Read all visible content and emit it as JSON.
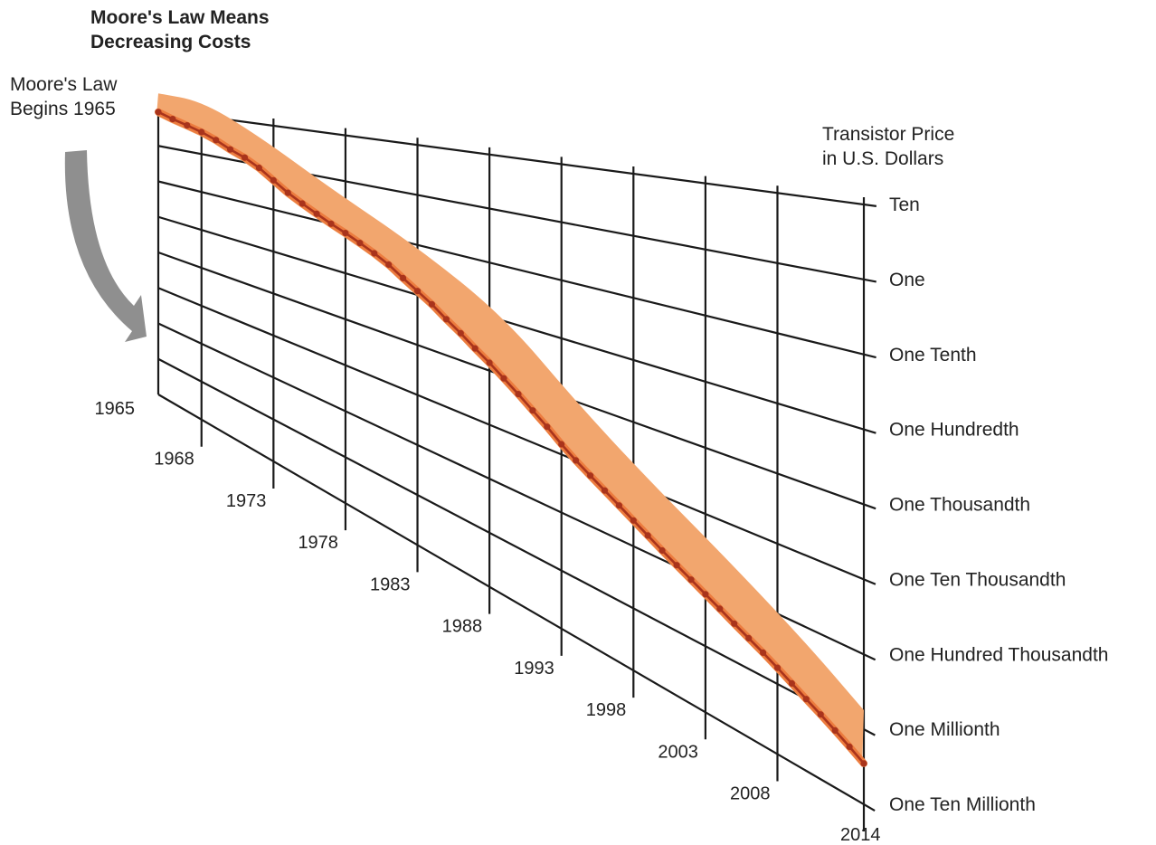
{
  "chart_data": {
    "type": "area",
    "title": [
      "Moore's Law Means",
      "Decreasing Costs"
    ],
    "annotation": [
      "Moore's Law",
      "Begins 1965"
    ],
    "ylabel": [
      "Transistor Price",
      "in U.S. Dollars"
    ],
    "y_scale": "log",
    "y_tick_labels": [
      "Ten",
      "One",
      "One Tenth",
      "One Hundredth",
      "One Thousandth",
      "One Ten Thousandth",
      "One Hundred Thousandth",
      "One Millionth",
      "One Ten Millionth"
    ],
    "y_tick_values": [
      10,
      1,
      0.1,
      0.01,
      0.001,
      0.0001,
      1e-05,
      1e-06,
      1e-07
    ],
    "x_tick_labels": [
      "1965",
      "1968",
      "1973",
      "1978",
      "1983",
      "1988",
      "1993",
      "1998",
      "2003",
      "2008",
      "2014"
    ],
    "xlim": [
      1965,
      2014
    ],
    "band_upper": [
      [
        1965,
        30
      ],
      [
        1968,
        25
      ],
      [
        1972,
        5
      ],
      [
        1977,
        0.6
      ],
      [
        1983,
        0.09
      ],
      [
        1989,
        0.012
      ],
      [
        1994,
        0.001
      ],
      [
        1999,
        0.00015
      ],
      [
        2005,
        2.5e-05
      ],
      [
        2010,
        6e-06
      ],
      [
        2014,
        1.8e-06
      ]
    ],
    "series": [
      {
        "type": "line-markers",
        "x": [
          1965,
          1966,
          1967,
          1968,
          1969,
          1970,
          1971,
          1972,
          1973,
          1974,
          1975,
          1976,
          1977,
          1978,
          1979,
          1980,
          1981,
          1982,
          1983,
          1984,
          1985,
          1986,
          1987,
          1988,
          1989,
          1990,
          1991,
          1992,
          1993,
          1994,
          1995,
          1996,
          1997,
          1998,
          1999,
          2000,
          2001,
          2002,
          2003,
          2004,
          2005,
          2006,
          2007,
          2008,
          2009,
          2010,
          2011,
          2012,
          2013,
          2014
        ],
        "values": [
          9,
          6.5,
          5,
          3.8,
          2.7,
          1.8,
          1.3,
          0.85,
          0.5,
          0.3,
          0.2,
          0.14,
          0.1,
          0.075,
          0.055,
          0.04,
          0.028,
          0.018,
          0.012,
          0.008,
          0.005,
          0.0033,
          0.0021,
          0.0014,
          0.0009,
          0.00058,
          0.00037,
          0.00024,
          0.00015,
          0.0001,
          7e-05,
          5e-05,
          3.6e-05,
          2.6e-05,
          1.9e-05,
          1.4e-05,
          1.05e-05,
          8e-06,
          6.1e-06,
          4.7e-06,
          3.6e-06,
          2.8e-06,
          2.2e-06,
          1.7e-06,
          1.3e-06,
          1e-06,
          7.8e-07,
          6e-07,
          4.6e-07,
          3.5e-07
        ]
      }
    ],
    "colors": {
      "band": "#f2a66e",
      "line": "#a9341c",
      "line_edge": "#ec7c3f",
      "arrow": "#8f8f8f",
      "grid": "#1a1a1a"
    }
  }
}
